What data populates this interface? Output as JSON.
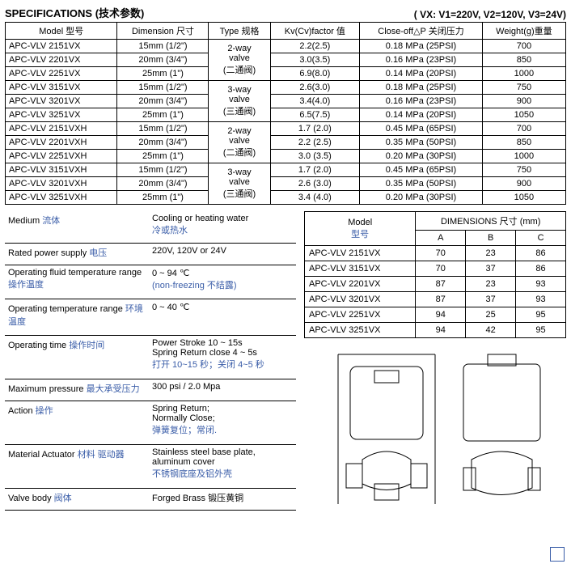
{
  "header": {
    "title": "SPECIFICATIONS (技术参数)",
    "voltages": "( VX:   V1=220V,   V2=120V,   V3=24V)"
  },
  "main_table": {
    "columns": [
      "Model 型号",
      "Dimension 尺寸",
      "Type 规格",
      "Kv(Cv)factor 值",
      "Close-off△P   关闭压力",
      "Weight(g)重量"
    ],
    "groups": [
      {
        "type": [
          "2-way",
          "valve",
          "(二通阀)"
        ],
        "rows": [
          {
            "model": "APC-VLV 2151VX",
            "dim": "15mm (1/2\")",
            "kv": "2.2(2.5)",
            "close": "0.18 MPa   (25PSI)",
            "wt": "700"
          },
          {
            "model": "APC-VLV 2201VX",
            "dim": "20mm (3/4\")",
            "kv": "3.0(3.5)",
            "close": "0.16 MPa   (23PSI)",
            "wt": "850"
          },
          {
            "model": "APC-VLV 2251VX",
            "dim": "25mm   (1\")",
            "kv": "6.9(8.0)",
            "close": "0.14 MPa   (20PSI)",
            "wt": "1000"
          }
        ]
      },
      {
        "type": [
          "3-way",
          "valve",
          "(三通阀)"
        ],
        "rows": [
          {
            "model": "APC-VLV 3151VX",
            "dim": "15mm (1/2\")",
            "kv": "2.6(3.0)",
            "close": "0.18 MPa   (25PSI)",
            "wt": "750"
          },
          {
            "model": "APC-VLV 3201VX",
            "dim": "20mm (3/4\")",
            "kv": "3.4(4.0)",
            "close": "0.16 MPa   (23PSI)",
            "wt": "900"
          },
          {
            "model": "APC-VLV 3251VX",
            "dim": "25mm   (1\")",
            "kv": "6.5(7.5)",
            "close": "0.14 MPa   (20PSI)",
            "wt": "1050"
          }
        ]
      },
      {
        "type": [
          "2-way",
          "valve",
          "(二通阀)"
        ],
        "rows": [
          {
            "model": "APC-VLV 2151VXH",
            "dim": "15mm (1/2\")",
            "kv": "1.7 (2.0)",
            "close": "0.45 MPa   (65PSI)",
            "wt": "700"
          },
          {
            "model": "APC-VLV 2201VXH",
            "dim": "20mm (3/4\")",
            "kv": "2.2 (2.5)",
            "close": "0.35 MPa   (50PSI)",
            "wt": "850"
          },
          {
            "model": "APC-VLV 2251VXH",
            "dim": "25mm   (1\")",
            "kv": "3.0 (3.5)",
            "close": "0.20 MPa   (30PSI)",
            "wt": "1000"
          }
        ]
      },
      {
        "type": [
          "3-way",
          "valve",
          "(三通阀)"
        ],
        "rows": [
          {
            "model": "APC-VLV 3151VXH",
            "dim": "15mm (1/2\")",
            "kv": "1.7 (2.0)",
            "close": "0.45 MPa   (65PSI)",
            "wt": "750"
          },
          {
            "model": "APC-VLV 3201VXH",
            "dim": "20mm (3/4\")",
            "kv": "2.6 (3.0)",
            "close": "0.35 MPa   (50PSI)",
            "wt": "900"
          },
          {
            "model": "APC-VLV 3251VXH",
            "dim": "25mm   (1\")",
            "kv": "3.4 (4.0)",
            "close": "0.20 MPa   (30PSI)",
            "wt": "1050"
          }
        ]
      }
    ]
  },
  "spec_list": [
    {
      "label_en": "Medium",
      "label_cn": "流体",
      "val_en": "Cooling or heating water",
      "val_cn": "冷或热水"
    },
    {
      "label_en": "Rated power supply",
      "label_cn": "电压",
      "val_en": "220V, 120V or 24V",
      "val_cn": ""
    },
    {
      "label_en": "Operating fluid temperature range",
      "label_cn": "操作温度",
      "val_en": "0 ~ 94 ℃",
      "val_cn": "(non-freezing  不结露)"
    },
    {
      "label_en": "Operating temperature range",
      "label_cn": "环境温度",
      "val_en": "0 ~ 40 ℃",
      "val_cn": ""
    },
    {
      "label_en": "Operating time",
      "label_cn": "操作时间",
      "val_en": "Power Stroke 10 ~ 15s\nSpring Return close 4 ~ 5s",
      "val_cn": "打开  10~15 秒；关闭  4~5 秒"
    },
    {
      "label_en": "Maximum pressure",
      "label_cn": "最大承受压力",
      "val_en": "300 psi / 2.0 Mpa",
      "val_cn": ""
    },
    {
      "label_en": "Action",
      "label_cn": "操作",
      "val_en": "Spring Return;\nNormally Close;",
      "val_cn": "弹簧复位；常闭."
    },
    {
      "label_en": "Material   Actuator",
      "label_cn": "材料     驱动器",
      "val_en": "Stainless steel base plate, aluminum cover",
      "val_cn": "不锈钢底座及铝外壳"
    },
    {
      "label_en": "Valve body",
      "label_cn": "阀体",
      "val_en": "Forged Brass 锻压黄铜",
      "val_cn": ""
    }
  ],
  "dims_table": {
    "title1": "Model",
    "title1_cn": "型号",
    "title2": "DIMENSIONS 尺寸   (mm)",
    "cols": [
      "A",
      "B",
      "C"
    ],
    "rows": [
      {
        "model": "APC-VLV 2151VX",
        "a": "70",
        "b": "23",
        "c": "86"
      },
      {
        "model": "APC-VLV 3151VX",
        "a": "70",
        "b": "37",
        "c": "86"
      },
      {
        "model": "APC-VLV 2201VX",
        "a": "87",
        "b": "23",
        "c": "93"
      },
      {
        "model": "APC-VLV 3201VX",
        "a": "87",
        "b": "37",
        "c": "93"
      },
      {
        "model": "APC-VLV 2251VX",
        "a": "94",
        "b": "25",
        "c": "95"
      },
      {
        "model": "APC-VLV 3251VX",
        "a": "94",
        "b": "42",
        "c": "95"
      }
    ]
  }
}
